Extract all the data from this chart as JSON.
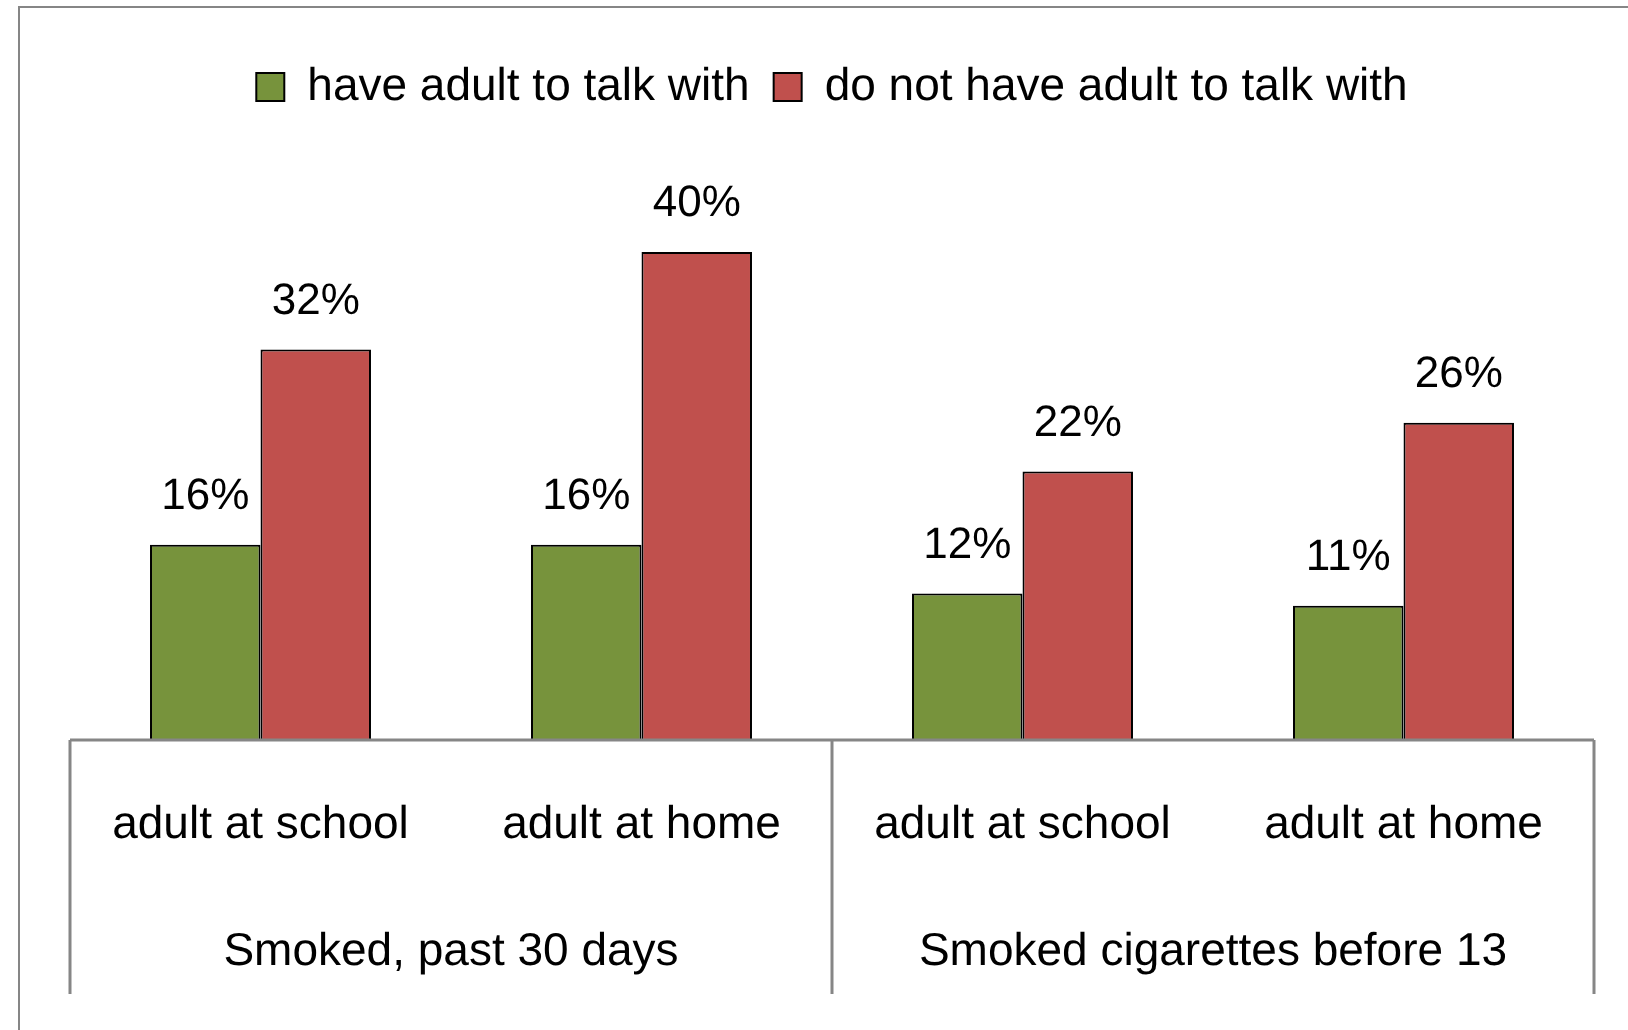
{
  "chart_data": {
    "type": "bar",
    "categories": [
      "adult at school",
      "adult at home",
      "adult at school",
      "adult at home"
    ],
    "series": [
      {
        "name": "have adult to talk with",
        "color": "#77933c",
        "values": [
          16,
          16,
          12,
          11
        ],
        "value_labels": [
          "16%",
          "16%",
          "12%",
          "11%"
        ]
      },
      {
        "name": "do not have adult to talk with",
        "color": "#c0504d",
        "values": [
          32,
          40,
          22,
          26
        ],
        "value_labels": [
          "32%",
          "40%",
          "22%",
          "26%"
        ]
      }
    ],
    "annotations": [
      "Smoked, past 30 days",
      "Smoked cigarettes before 13"
    ],
    "legend": "top",
    "tick_labels": "x"
  }
}
